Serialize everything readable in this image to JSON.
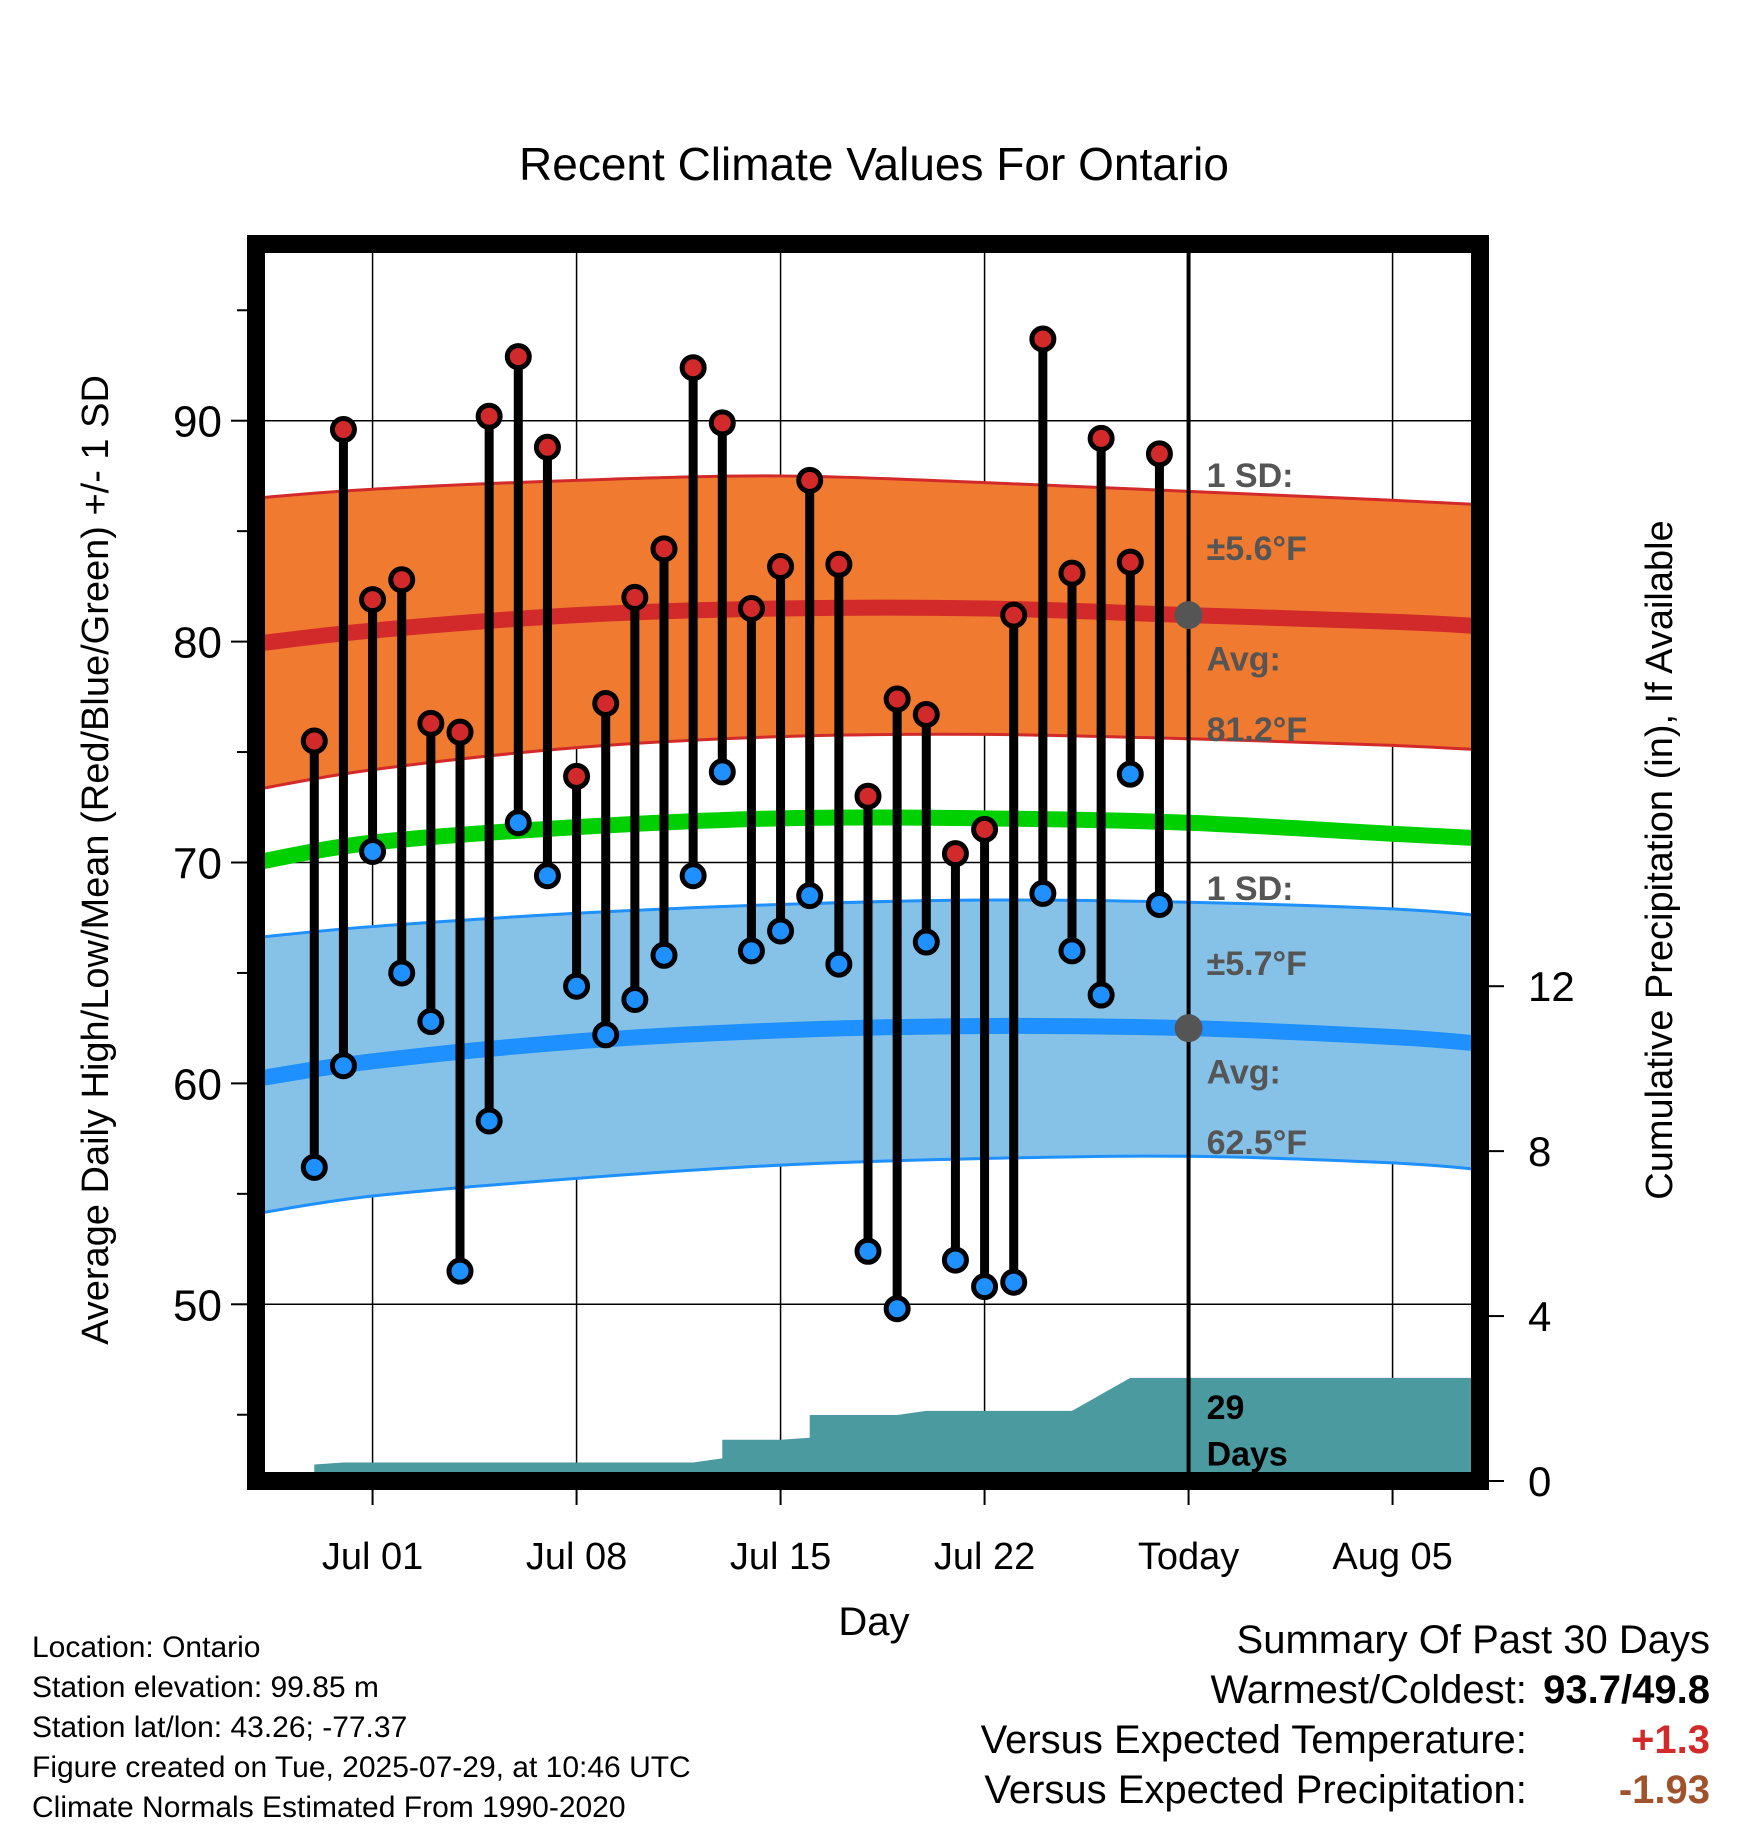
{
  "chart_data": {
    "type": "line",
    "title": "Recent Climate Values For Ontario",
    "xlabel": "Day",
    "ylabel": "Average Daily High/Low/Mean (Red/Blue/Green) +/- 1 SD",
    "y2label": "Cumulative Precipitation (in), If Available",
    "ylim": [
      42,
      98
    ],
    "y2lim": [
      0,
      30
    ],
    "yticks": [
      50,
      60,
      70,
      80,
      90
    ],
    "y2ticks": [
      0,
      4,
      8,
      12
    ],
    "xlim": [
      "2025-06-27",
      "2025-08-08"
    ],
    "xticks": [
      {
        "date": "2025-07-01",
        "label": "Jul 01"
      },
      {
        "date": "2025-07-08",
        "label": "Jul 08"
      },
      {
        "date": "2025-07-15",
        "label": "Jul 15"
      },
      {
        "date": "2025-07-22",
        "label": "Jul 22"
      },
      {
        "date": "2025-07-29",
        "label": "Today"
      },
      {
        "date": "2025-08-05",
        "label": "Aug 05"
      }
    ],
    "grid": true,
    "today": "2025-07-29",
    "daily": [
      {
        "date": "2025-06-29",
        "high": 75.5,
        "low": 56.2
      },
      {
        "date": "2025-06-30",
        "high": 89.6,
        "low": 60.8
      },
      {
        "date": "2025-07-01",
        "high": 81.9,
        "low": 70.5
      },
      {
        "date": "2025-07-02",
        "high": 82.8,
        "low": 65.0
      },
      {
        "date": "2025-07-03",
        "high": 76.3,
        "low": 62.8
      },
      {
        "date": "2025-07-04",
        "high": 75.9,
        "low": 51.5
      },
      {
        "date": "2025-07-05",
        "high": 90.2,
        "low": 58.3
      },
      {
        "date": "2025-07-06",
        "high": 92.9,
        "low": 71.8
      },
      {
        "date": "2025-07-07",
        "high": 88.8,
        "low": 69.4
      },
      {
        "date": "2025-07-08",
        "high": 73.9,
        "low": 64.4
      },
      {
        "date": "2025-07-09",
        "high": 77.2,
        "low": 62.2
      },
      {
        "date": "2025-07-10",
        "high": 82.0,
        "low": 63.8
      },
      {
        "date": "2025-07-11",
        "high": 84.2,
        "low": 65.8
      },
      {
        "date": "2025-07-12",
        "high": 92.4,
        "low": 69.4
      },
      {
        "date": "2025-07-13",
        "high": 89.9,
        "low": 74.1
      },
      {
        "date": "2025-07-14",
        "high": 81.5,
        "low": 66.0
      },
      {
        "date": "2025-07-15",
        "high": 83.4,
        "low": 66.9
      },
      {
        "date": "2025-07-16",
        "high": 87.3,
        "low": 68.5
      },
      {
        "date": "2025-07-17",
        "high": 83.5,
        "low": 65.4
      },
      {
        "date": "2025-07-18",
        "high": 73.0,
        "low": 52.4
      },
      {
        "date": "2025-07-19",
        "high": 77.4,
        "low": 49.8
      },
      {
        "date": "2025-07-20",
        "high": 76.7,
        "low": 66.4
      },
      {
        "date": "2025-07-21",
        "high": 70.4,
        "low": 52.0
      },
      {
        "date": "2025-07-22",
        "high": 71.5,
        "low": 50.8
      },
      {
        "date": "2025-07-23",
        "high": 81.2,
        "low": 51.0
      },
      {
        "date": "2025-07-24",
        "high": 93.7,
        "low": 68.6
      },
      {
        "date": "2025-07-25",
        "high": 83.1,
        "low": 66.0
      },
      {
        "date": "2025-07-26",
        "high": 89.2,
        "low": 64.0
      },
      {
        "date": "2025-07-27",
        "high": 83.6,
        "low": 74.0
      },
      {
        "date": "2025-07-28",
        "high": 88.5,
        "low": 68.1
      }
    ],
    "normals": {
      "dates": [
        "2025-06-27",
        "2025-07-01",
        "2025-07-08",
        "2025-07-15",
        "2025-07-22",
        "2025-07-29",
        "2025-08-05",
        "2025-08-08"
      ],
      "high_avg": [
        79.9,
        80.5,
        81.2,
        81.5,
        81.5,
        81.2,
        80.9,
        80.7
      ],
      "high_lower": [
        73.3,
        74.2,
        75.2,
        75.7,
        75.8,
        75.6,
        75.3,
        75.1
      ],
      "high_upper": [
        86.5,
        86.9,
        87.3,
        87.5,
        87.2,
        86.8,
        86.4,
        86.2
      ],
      "mean_avg": [
        70.0,
        70.9,
        71.6,
        72.0,
        72.0,
        71.8,
        71.3,
        71.1
      ],
      "low_avg": [
        60.2,
        61.0,
        61.9,
        62.4,
        62.6,
        62.5,
        62.1,
        61.8
      ],
      "low_lower": [
        54.1,
        54.9,
        55.7,
        56.3,
        56.6,
        56.7,
        56.4,
        56.1
      ],
      "low_upper": [
        66.6,
        67.1,
        67.7,
        68.1,
        68.3,
        68.2,
        67.9,
        67.6
      ]
    },
    "precip": {
      "dates": [
        "2025-06-28",
        "2025-06-29",
        "2025-06-29",
        "2025-06-30",
        "2025-07-12",
        "2025-07-13",
        "2025-07-13",
        "2025-07-15",
        "2025-07-16",
        "2025-07-16",
        "2025-07-19",
        "2025-07-20",
        "2025-07-25",
        "2025-07-26",
        "2025-07-27",
        "2025-08-08"
      ],
      "values": [
        0.0,
        0.0,
        0.4,
        0.45,
        0.45,
        0.55,
        1.0,
        1.0,
        1.05,
        1.6,
        1.6,
        1.7,
        1.7,
        2.1,
        2.5,
        2.5
      ]
    },
    "annotations": {
      "high_sd_label": "1 SD:",
      "high_sd_value": "±5.6°F",
      "high_avg_label": "Avg:",
      "high_avg_value": "81.2°F",
      "low_sd_label": "1 SD:",
      "low_sd_value": "±5.7°F",
      "low_avg_label": "Avg:",
      "low_avg_value": "62.5°F",
      "days_count": "29",
      "days_word": "Days"
    },
    "colors": {
      "high_band": "#f07a30",
      "high_line": "#d22a2a",
      "low_band": "#86c2e8",
      "low_line": "#1e90ff",
      "mean_line": "#00d000",
      "precip": "#4a9aa0",
      "high_dot": "#d22a2a",
      "low_dot": "#1e90ff",
      "avg_dot": "#555555",
      "annot_text": "#555555"
    }
  },
  "footer": {
    "location": "Location: Ontario",
    "elevation": "Station elevation: 99.85 m",
    "latlon": "Station lat/lon: 43.26; -77.37",
    "created": "Figure created on Tue, 2025-07-29, at 10:46 UTC",
    "normals": "Climate Normals Estimated From 1990-2020"
  },
  "summary": {
    "title": "Summary Of Past 30 Days",
    "warm_cold_label": "Warmest/Coldest:",
    "warmest": "93.7",
    "coldest": "49.8",
    "temp_label": "Versus Expected Temperature:",
    "temp_value": "+1.3",
    "temp_color": "#d22a2a",
    "precip_label": "Versus Expected Precipitation:",
    "precip_value": "-1.93",
    "precip_color": "#a0522d"
  }
}
